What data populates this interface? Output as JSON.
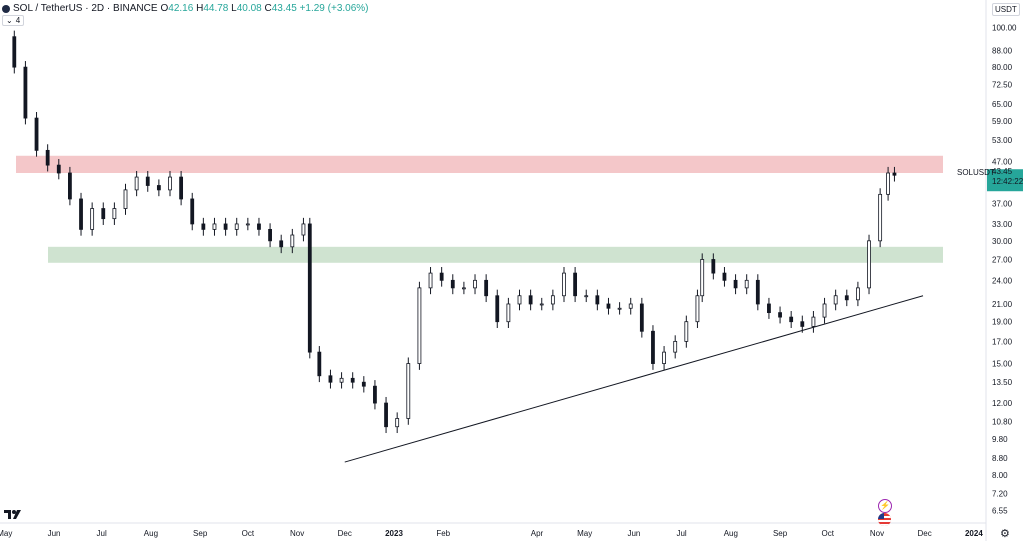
{
  "header": {
    "symbol": "SOL / TetherUS · 2D · BINANCE",
    "open_label": "O",
    "open": "42.16",
    "high_label": "H",
    "high": "44.78",
    "low_label": "L",
    "low": "40.08",
    "close_label": "C",
    "close": "43.45",
    "change": "+1.29 (+3.06%)",
    "indicator_count": "4"
  },
  "currency": "USDT",
  "symbol_tag": "SOLUSDT",
  "last_price": "43.45",
  "countdown": "12:42:22",
  "colors": {
    "up": "#26a69a",
    "resistance_zone": "#f4c7c9",
    "support_zone": "#cfe3d0",
    "price_tag_bg": "#26a69a",
    "candle": "#131722"
  },
  "chart_data": {
    "type": "line",
    "scale": "log",
    "grid": false,
    "x_tick_labels": [
      "May",
      "Jun",
      "Jul",
      "Aug",
      "Sep",
      "Oct",
      "Nov",
      "Dec",
      "2023",
      "Feb",
      "Apr",
      "May",
      "Jun",
      "Jul",
      "Aug",
      "Sep",
      "Oct",
      "Nov",
      "Dec",
      "2024"
    ],
    "y_tick_labels": [
      "100.00",
      "88.00",
      "80.00",
      "72.50",
      "65.00",
      "59.00",
      "53.00",
      "47.00",
      "37.00",
      "33.00",
      "30.00",
      "27.00",
      "24.00",
      "21.00",
      "19.00",
      "17.00",
      "15.00",
      "13.50",
      "12.00",
      "10.80",
      "9.80",
      "8.80",
      "8.00",
      "7.20",
      "6.55"
    ],
    "y_range": [
      6.2,
      108
    ],
    "zones": [
      {
        "name": "resistance",
        "from": 44.0,
        "to": 48.5
      },
      {
        "name": "support",
        "from": 26.5,
        "to": 29.0
      }
    ],
    "trendline": [
      {
        "x": "2022-12-01",
        "y": 8.6
      },
      {
        "x": "2023-11-30",
        "y": 22.0
      }
    ],
    "series": [
      {
        "values": [
          [
            "2022-05-01",
            95
          ],
          [
            "2022-05-07",
            80
          ],
          [
            "2022-05-14",
            60
          ],
          [
            "2022-05-21",
            50
          ],
          [
            "2022-05-28",
            46
          ],
          [
            "2022-06-04",
            44
          ],
          [
            "2022-06-11",
            38
          ],
          [
            "2022-06-18",
            32
          ],
          [
            "2022-06-25",
            36
          ],
          [
            "2022-07-02",
            34
          ],
          [
            "2022-07-09",
            36
          ],
          [
            "2022-07-16",
            40
          ],
          [
            "2022-07-23",
            43
          ],
          [
            "2022-07-30",
            41
          ],
          [
            "2022-08-06",
            40
          ],
          [
            "2022-08-13",
            43
          ],
          [
            "2022-08-20",
            38
          ],
          [
            "2022-08-27",
            33
          ],
          [
            "2022-09-03",
            32
          ],
          [
            "2022-09-10",
            33
          ],
          [
            "2022-09-17",
            32
          ],
          [
            "2022-09-24",
            33
          ],
          [
            "2022-10-01",
            33
          ],
          [
            "2022-10-08",
            32
          ],
          [
            "2022-10-15",
            30
          ],
          [
            "2022-10-22",
            29
          ],
          [
            "2022-10-29",
            31
          ],
          [
            "2022-11-05",
            33
          ],
          [
            "2022-11-09",
            16
          ],
          [
            "2022-11-15",
            14
          ],
          [
            "2022-11-22",
            13.5
          ],
          [
            "2022-11-29",
            13.8
          ],
          [
            "2022-12-06",
            13.5
          ],
          [
            "2022-12-13",
            13.2
          ],
          [
            "2022-12-20",
            12
          ],
          [
            "2022-12-27",
            10.5
          ],
          [
            "2023-01-03",
            11
          ],
          [
            "2023-01-10",
            15
          ],
          [
            "2023-01-17",
            23
          ],
          [
            "2023-01-24",
            25
          ],
          [
            "2023-01-31",
            24
          ],
          [
            "2023-02-07",
            23
          ],
          [
            "2023-02-14",
            23
          ],
          [
            "2023-02-21",
            24
          ],
          [
            "2023-02-28",
            22
          ],
          [
            "2023-03-07",
            19
          ],
          [
            "2023-03-14",
            21
          ],
          [
            "2023-03-21",
            22
          ],
          [
            "2023-03-28",
            21
          ],
          [
            "2023-04-04",
            21
          ],
          [
            "2023-04-11",
            22
          ],
          [
            "2023-04-18",
            25
          ],
          [
            "2023-04-25",
            22
          ],
          [
            "2023-05-02",
            22
          ],
          [
            "2023-05-09",
            21
          ],
          [
            "2023-05-16",
            20.5
          ],
          [
            "2023-05-23",
            20.5
          ],
          [
            "2023-05-30",
            21
          ],
          [
            "2023-06-06",
            18
          ],
          [
            "2023-06-13",
            15
          ],
          [
            "2023-06-20",
            16
          ],
          [
            "2023-06-27",
            17
          ],
          [
            "2023-07-04",
            19
          ],
          [
            "2023-07-11",
            22
          ],
          [
            "2023-07-14",
            27
          ],
          [
            "2023-07-21",
            25
          ],
          [
            "2023-07-28",
            24
          ],
          [
            "2023-08-04",
            23
          ],
          [
            "2023-08-11",
            24
          ],
          [
            "2023-08-18",
            21
          ],
          [
            "2023-08-25",
            20
          ],
          [
            "2023-09-01",
            19.5
          ],
          [
            "2023-09-08",
            19
          ],
          [
            "2023-09-15",
            18.5
          ],
          [
            "2023-09-22",
            19.5
          ],
          [
            "2023-09-29",
            21
          ],
          [
            "2023-10-06",
            22
          ],
          [
            "2023-10-13",
            21.5
          ],
          [
            "2023-10-20",
            23
          ],
          [
            "2023-10-27",
            30
          ],
          [
            "2023-11-03",
            39
          ],
          [
            "2023-11-08",
            44
          ],
          [
            "2023-11-12",
            43.45
          ]
        ]
      }
    ]
  }
}
